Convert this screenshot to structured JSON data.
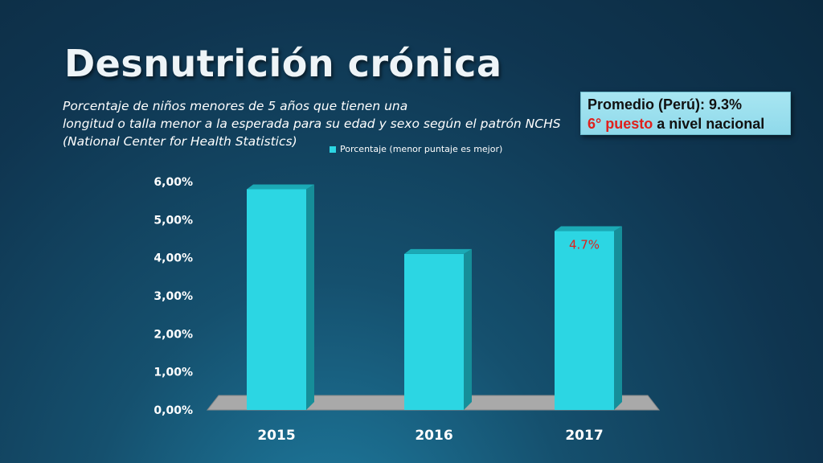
{
  "title": "Desnutrición crónica",
  "subtitle_lines": [
    "Porcentaje de niños menores de 5 años que tienen una",
    "longitud o talla menor a la esperada para su edad y sexo según el patrón NCHS",
    "(National Center for Health Statistics)"
  ],
  "info_box": {
    "line1": "Promedio (Perú): 9.3%",
    "line2_highlight": "6° puesto",
    "line2_rest": " a nivel nacional"
  },
  "colors": {
    "bar": "#2cd6e3",
    "bar_side": "#168e99",
    "floor": "#a9a9a9",
    "highlight": "#e0201c"
  },
  "chart_data": {
    "type": "bar",
    "categories": [
      "2015",
      "2016",
      "2017"
    ],
    "series": [
      {
        "name": "Porcentaje (menor puntaje es mejor)",
        "values": [
          5.8,
          4.1,
          4.7
        ]
      }
    ],
    "y_tick_labels": [
      "0,00%",
      "1,00%",
      "2,00%",
      "3,00%",
      "4,00%",
      "5,00%",
      "6,00%"
    ],
    "ylim": [
      0,
      6
    ],
    "data_labels": [
      null,
      null,
      "4.7%"
    ],
    "legend_position": "top",
    "grid": false
  }
}
